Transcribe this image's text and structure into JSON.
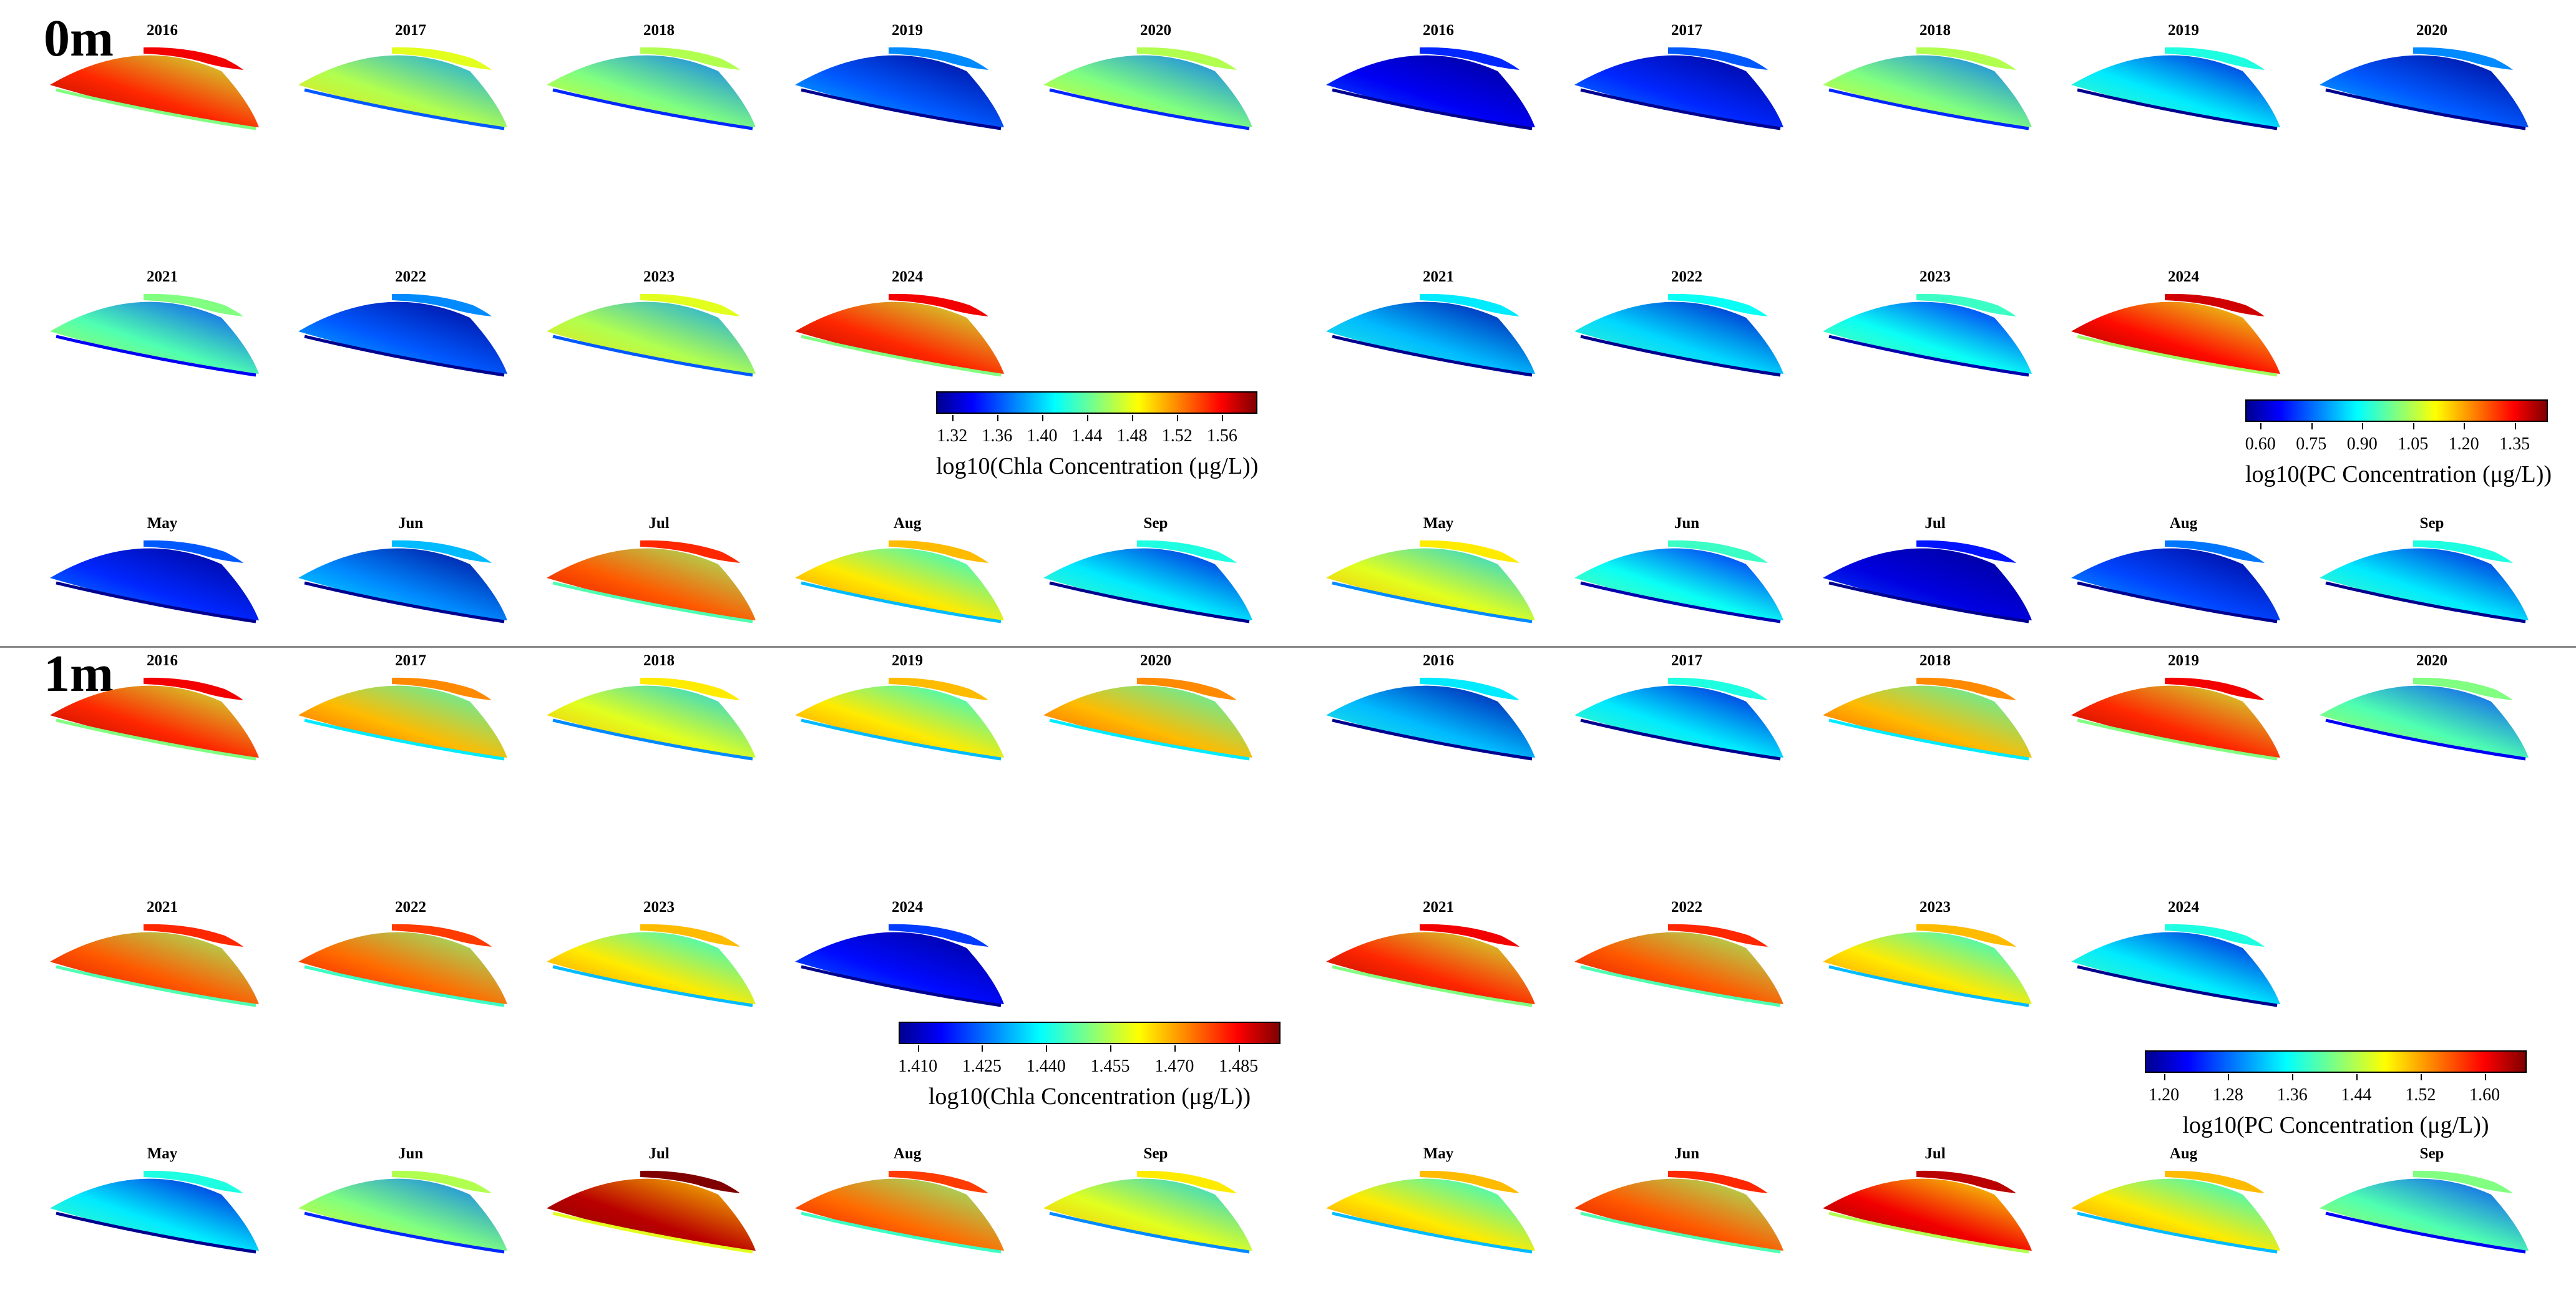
{
  "depth_sections": [
    {
      "label": "0m",
      "chla": {
        "panels": [
          {
            "label": "2016",
            "level": 0.85
          },
          {
            "label": "2017",
            "level": 0.55
          },
          {
            "label": "2018",
            "level": 0.5
          },
          {
            "label": "2019",
            "level": 0.2
          },
          {
            "label": "2020",
            "level": 0.5
          },
          {
            "label": "2021",
            "level": 0.45
          },
          {
            "label": "2022",
            "level": 0.2
          },
          {
            "label": "2023",
            "level": 0.55
          },
          {
            "label": "2024",
            "level": 0.85
          },
          {
            "label": "May",
            "level": 0.15
          },
          {
            "label": "Jun",
            "level": 0.25
          },
          {
            "label": "Jul",
            "level": 0.8
          },
          {
            "label": "Aug",
            "level": 0.65
          },
          {
            "label": "Sep",
            "level": 0.35
          }
        ],
        "colorbar": {
          "ticks": [
            "1.32",
            "1.36",
            "1.40",
            "1.44",
            "1.48",
            "1.52",
            "1.56"
          ],
          "title": "log10(Chla Concentration (μg/L))"
        }
      },
      "pc": {
        "panels": [
          {
            "label": "2016",
            "level": 0.1
          },
          {
            "label": "2017",
            "level": 0.15
          },
          {
            "label": "2018",
            "level": 0.5
          },
          {
            "label": "2019",
            "level": 0.35
          },
          {
            "label": "2020",
            "level": 0.2
          },
          {
            "label": "2021",
            "level": 0.3
          },
          {
            "label": "2022",
            "level": 0.33
          },
          {
            "label": "2023",
            "level": 0.38
          },
          {
            "label": "2024",
            "level": 0.88
          },
          {
            "label": "May",
            "level": 0.6
          },
          {
            "label": "Jun",
            "level": 0.38
          },
          {
            "label": "Jul",
            "level": 0.08
          },
          {
            "label": "Aug",
            "level": 0.18
          },
          {
            "label": "Sep",
            "level": 0.35
          }
        ],
        "colorbar": {
          "ticks": [
            "0.60",
            "0.75",
            "0.90",
            "1.05",
            "1.20",
            "1.35"
          ],
          "title": "log10(PC Concentration (μg/L))"
        }
      }
    },
    {
      "label": "1m",
      "chla": {
        "panels": [
          {
            "label": "2016",
            "level": 0.85
          },
          {
            "label": "2017",
            "level": 0.7
          },
          {
            "label": "2018",
            "level": 0.6
          },
          {
            "label": "2019",
            "level": 0.65
          },
          {
            "label": "2020",
            "level": 0.7
          },
          {
            "label": "2021",
            "level": 0.8
          },
          {
            "label": "2022",
            "level": 0.78
          },
          {
            "label": "2023",
            "level": 0.65
          },
          {
            "label": "2024",
            "level": 0.12
          },
          {
            "label": "May",
            "level": 0.35
          },
          {
            "label": "Jun",
            "level": 0.5
          },
          {
            "label": "Jul",
            "level": 0.95
          },
          {
            "label": "Aug",
            "level": 0.78
          },
          {
            "label": "Sep",
            "level": 0.6
          }
        ],
        "colorbar": {
          "ticks": [
            "1.410",
            "1.425",
            "1.440",
            "1.455",
            "1.470",
            "1.485"
          ],
          "title": "log10(Chla Concentration (μg/L))"
        }
      },
      "pc": {
        "panels": [
          {
            "label": "2016",
            "level": 0.3
          },
          {
            "label": "2017",
            "level": 0.35
          },
          {
            "label": "2018",
            "level": 0.7
          },
          {
            "label": "2019",
            "level": 0.85
          },
          {
            "label": "2020",
            "level": 0.45
          },
          {
            "label": "2021",
            "level": 0.85
          },
          {
            "label": "2022",
            "level": 0.8
          },
          {
            "label": "2023",
            "level": 0.65
          },
          {
            "label": "2024",
            "level": 0.35
          },
          {
            "label": "May",
            "level": 0.65
          },
          {
            "label": "Jun",
            "level": 0.8
          },
          {
            "label": "Jul",
            "level": 0.9
          },
          {
            "label": "Aug",
            "level": 0.65
          },
          {
            "label": "Sep",
            "level": 0.45
          }
        ],
        "colorbar": {
          "ticks": [
            "1.20",
            "1.28",
            "1.36",
            "1.44",
            "1.52",
            "1.60"
          ],
          "title": "log10(PC Concentration (μg/L))"
        }
      }
    }
  ]
}
